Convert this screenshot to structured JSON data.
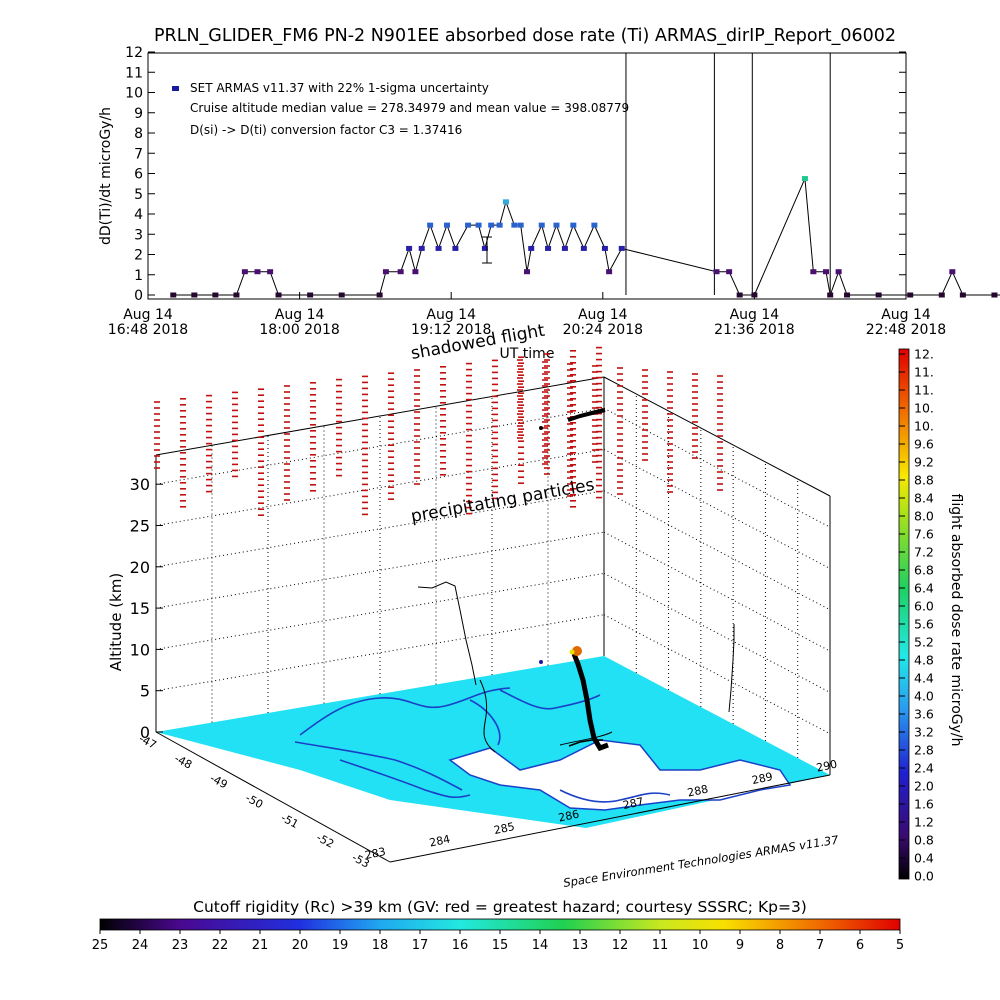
{
  "title": "PRLN_GLIDER_FM6 PN-2 N901EE absorbed dose rate (Ti) ARMAS_dirIP_Report_06002",
  "top_plot": {
    "ylabel": "dD(Ti)/dt microGy/h",
    "xlabel": "UT time",
    "yticks": [
      "0",
      "1",
      "2",
      "3",
      "4",
      "5",
      "6",
      "7",
      "8",
      "9",
      "10",
      "11",
      "12"
    ],
    "xticks": [
      {
        "line1": "Aug 14",
        "line2": "16:48 2018"
      },
      {
        "line1": "Aug 14",
        "line2": "18:00 2018"
      },
      {
        "line1": "Aug 14",
        "line2": "19:12 2018"
      },
      {
        "line1": "Aug 14",
        "line2": "20:24 2018"
      },
      {
        "line1": "Aug 14",
        "line2": "21:36 2018"
      },
      {
        "line1": "Aug 14",
        "line2": "22:48 2018"
      }
    ],
    "legend_series": "SET ARMAS v11.37 with 22% 1-sigma uncertainty",
    "note_median_mean": "Cruise altitude median value = 278.34979 and mean value = 398.08779",
    "note_conversion": "D(si) -> D(ti) conversion factor C3 = 1.37416"
  },
  "map3d": {
    "ylabel": "Altitude (km)",
    "alt_ticks": [
      "0",
      "5",
      "10",
      "15",
      "20",
      "25",
      "30"
    ],
    "lat_ticks": [
      "-47",
      "-48",
      "-49",
      "-50",
      "-51",
      "-52",
      "-53"
    ],
    "lon_ticks": [
      "283",
      "284",
      "285",
      "286",
      "287",
      "288",
      "289",
      "290"
    ],
    "annotation_shadowed": "shadowed flight",
    "annotation_precip": "precipitating particles",
    "credit": "Space Environment Technologies ARMAS v11.37"
  },
  "right_colorbar": {
    "label": "flight absorbed dose rate microGy/h",
    "ticks": [
      "12.",
      "11.",
      "11.",
      "10.",
      "10.",
      "9.6",
      "9.2",
      "8.8",
      "8.4",
      "8.0",
      "7.6",
      "7.2",
      "6.8",
      "6.4",
      "6.0",
      "5.6",
      "5.2",
      "4.8",
      "4.4",
      "4.0",
      "3.6",
      "3.2",
      "2.8",
      "2.4",
      "2.0",
      "1.6",
      "1.2",
      "0.8",
      "0.4",
      "0.0"
    ]
  },
  "bottom_colorbar": {
    "title": "Cutoff rigidity (Rc) >39 km (GV: red = greatest hazard; courtesy SSSRC; Kp=3)",
    "ticks": [
      "25",
      "24",
      "23",
      "22",
      "21",
      "20",
      "19",
      "18",
      "17",
      "16",
      "15",
      "14",
      "13",
      "12",
      "11",
      "10",
      "9",
      "8",
      "7",
      "6",
      "5"
    ]
  },
  "colors": {
    "series_marker": "#1a1a9c",
    "ocean_fill": "#22e1f4",
    "coast_line": "#1a40c8",
    "precip_marks": "#c01010"
  },
  "chart_data": {
    "type": "scatter",
    "title": "PRLN_GLIDER_FM6 PN-2 N901EE absorbed dose rate (Ti) ARMAS_dirIP_Report_06002",
    "xlabel": "UT time",
    "ylabel": "dD(Ti)/dt microGy/h",
    "ylim": [
      0,
      12
    ],
    "xlim": [
      "16:48",
      "22:48"
    ],
    "series": [
      {
        "name": "SET ARMAS v11.37 with 22% 1-sigma uncertainty",
        "points": [
          {
            "t": "17:00",
            "y": 0
          },
          {
            "t": "17:10",
            "y": 0
          },
          {
            "t": "17:20",
            "y": 0
          },
          {
            "t": "17:30",
            "y": 0
          },
          {
            "t": "17:34",
            "y": 1.15
          },
          {
            "t": "17:40",
            "y": 1.15
          },
          {
            "t": "17:46",
            "y": 1.15
          },
          {
            "t": "17:50",
            "y": 0
          },
          {
            "t": "18:05",
            "y": 0
          },
          {
            "t": "18:20",
            "y": 0
          },
          {
            "t": "18:38",
            "y": 0
          },
          {
            "t": "18:41",
            "y": 1.15
          },
          {
            "t": "18:48",
            "y": 1.15
          },
          {
            "t": "18:52",
            "y": 2.3
          },
          {
            "t": "18:55",
            "y": 1.15
          },
          {
            "t": "18:58",
            "y": 2.3
          },
          {
            "t": "19:02",
            "y": 3.45
          },
          {
            "t": "19:06",
            "y": 2.3
          },
          {
            "t": "19:10",
            "y": 3.45
          },
          {
            "t": "19:14",
            "y": 2.3
          },
          {
            "t": "19:20",
            "y": 3.45
          },
          {
            "t": "19:25",
            "y": 3.45
          },
          {
            "t": "19:28",
            "y": 2.3
          },
          {
            "t": "19:31",
            "y": 3.45
          },
          {
            "t": "19:35",
            "y": 3.45
          },
          {
            "t": "19:38",
            "y": 4.6
          },
          {
            "t": "19:42",
            "y": 3.45
          },
          {
            "t": "19:45",
            "y": 3.45
          },
          {
            "t": "19:48",
            "y": 1.15
          },
          {
            "t": "19:50",
            "y": 2.3
          },
          {
            "t": "19:55",
            "y": 3.45
          },
          {
            "t": "19:58",
            "y": 2.3
          },
          {
            "t": "20:02",
            "y": 3.45
          },
          {
            "t": "20:06",
            "y": 2.3
          },
          {
            "t": "20:10",
            "y": 3.45
          },
          {
            "t": "20:15",
            "y": 2.3
          },
          {
            "t": "20:20",
            "y": 3.45
          },
          {
            "t": "20:25",
            "y": 2.3
          },
          {
            "t": "20:27",
            "y": 1.15
          },
          {
            "t": "20:33",
            "y": 2.3
          },
          {
            "t": "21:18",
            "y": 1.15
          },
          {
            "t": "21:24",
            "y": 1.15
          },
          {
            "t": "21:29",
            "y": 0
          },
          {
            "t": "21:36",
            "y": 0
          },
          {
            "t": "22:00",
            "y": 5.75
          },
          {
            "t": "22:04",
            "y": 1.15
          },
          {
            "t": "22:10",
            "y": 1.15
          },
          {
            "t": "22:12",
            "y": 0
          },
          {
            "t": "22:16",
            "y": 1.15
          },
          {
            "t": "22:20",
            "y": 0
          },
          {
            "t": "22:35",
            "y": 0
          },
          {
            "t": "22:50",
            "y": 0
          },
          {
            "t": "23:05",
            "y": 0
          },
          {
            "t": "23:10",
            "y": 1.15
          },
          {
            "t": "23:15",
            "y": 0
          },
          {
            "t": "23:30",
            "y": 0
          },
          {
            "t": "23:43",
            "y": 0
          }
        ]
      }
    ],
    "spikes": [
      "20:35",
      "21:17",
      "21:35",
      "22:12"
    ]
  }
}
